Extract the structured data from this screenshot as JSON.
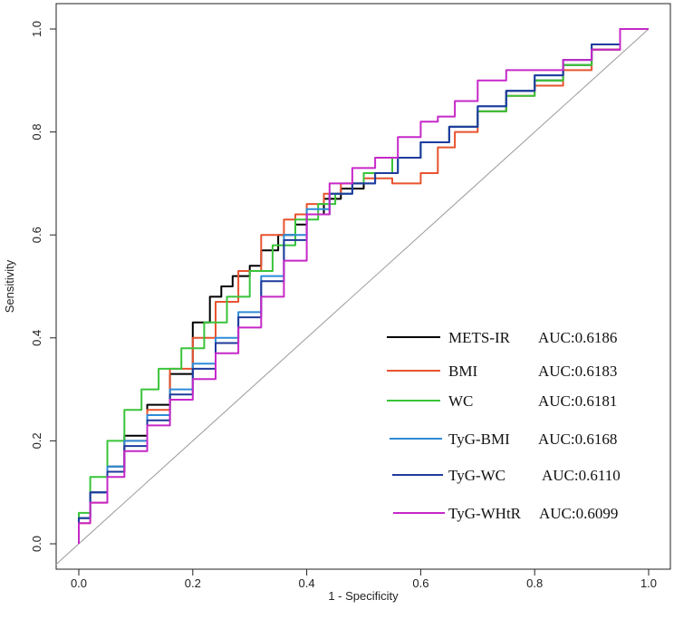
{
  "chart_data": {
    "type": "line",
    "title": "",
    "xlabel": "1 - Specificity",
    "ylabel": "Sensitivity",
    "xlim": [
      0.0,
      1.0
    ],
    "ylim": [
      0.0,
      1.0
    ],
    "xticks": [
      "0.0",
      "0.2",
      "0.4",
      "0.6",
      "0.8",
      "1.0"
    ],
    "yticks": [
      "0.0",
      "0.2",
      "0.4",
      "0.6",
      "0.8",
      "1.0"
    ],
    "tick_values": [
      0.0,
      0.2,
      0.4,
      0.6,
      0.8,
      1.0
    ],
    "reference_line": {
      "x": [
        0,
        1
      ],
      "y": [
        0,
        1
      ],
      "color": "#9a9a9a"
    },
    "legend_position": "bottom-right",
    "series": [
      {
        "name": "METS-IR",
        "auc_label": "AUC:0.6186",
        "color": "#000000",
        "x": [
          0,
          0.02,
          0.05,
          0.08,
          0.12,
          0.16,
          0.2,
          0.23,
          0.25,
          0.27,
          0.3,
          0.32,
          0.35,
          0.38,
          0.4,
          0.43,
          0.46,
          0.5,
          0.55,
          0.6,
          0.65,
          0.7,
          0.75,
          0.8,
          0.85,
          0.9,
          0.95,
          1.0
        ],
        "y": [
          0,
          0.05,
          0.1,
          0.15,
          0.21,
          0.27,
          0.33,
          0.43,
          0.48,
          0.5,
          0.52,
          0.54,
          0.57,
          0.6,
          0.62,
          0.64,
          0.67,
          0.69,
          0.72,
          0.75,
          0.78,
          0.81,
          0.84,
          0.88,
          0.9,
          0.93,
          0.96,
          1.0
        ]
      },
      {
        "name": "BMI",
        "auc_label": "AUC:0.6183",
        "color": "#e8532f",
        "x": [
          0,
          0.02,
          0.05,
          0.08,
          0.12,
          0.16,
          0.2,
          0.24,
          0.28,
          0.32,
          0.36,
          0.38,
          0.4,
          0.43,
          0.46,
          0.5,
          0.55,
          0.6,
          0.63,
          0.66,
          0.7,
          0.75,
          0.8,
          0.85,
          0.9,
          0.95,
          1.0
        ],
        "y": [
          0,
          0.04,
          0.08,
          0.14,
          0.2,
          0.26,
          0.34,
          0.4,
          0.47,
          0.53,
          0.6,
          0.63,
          0.64,
          0.66,
          0.68,
          0.7,
          0.71,
          0.7,
          0.72,
          0.77,
          0.8,
          0.84,
          0.87,
          0.89,
          0.92,
          0.96,
          1.0
        ]
      },
      {
        "name": "WC",
        "auc_label": "AUC:0.6181",
        "color": "#39c43a",
        "x": [
          0,
          0.02,
          0.05,
          0.08,
          0.11,
          0.14,
          0.18,
          0.22,
          0.26,
          0.3,
          0.34,
          0.38,
          0.42,
          0.45,
          0.48,
          0.5,
          0.55,
          0.6,
          0.65,
          0.7,
          0.75,
          0.8,
          0.85,
          0.9,
          0.95,
          1.0
        ],
        "y": [
          0,
          0.06,
          0.13,
          0.2,
          0.26,
          0.3,
          0.34,
          0.38,
          0.43,
          0.48,
          0.53,
          0.58,
          0.63,
          0.66,
          0.68,
          0.7,
          0.72,
          0.75,
          0.78,
          0.81,
          0.84,
          0.87,
          0.9,
          0.93,
          0.97,
          1.0
        ]
      },
      {
        "name": "TyG-BMI",
        "auc_label": "AUC:0.6168",
        "color": "#2e8bd8",
        "x": [
          0,
          0.02,
          0.05,
          0.08,
          0.12,
          0.16,
          0.2,
          0.24,
          0.28,
          0.32,
          0.36,
          0.4,
          0.44,
          0.48,
          0.52,
          0.56,
          0.6,
          0.65,
          0.7,
          0.75,
          0.8,
          0.85,
          0.9,
          0.95,
          1.0
        ],
        "y": [
          0,
          0.05,
          0.1,
          0.15,
          0.2,
          0.25,
          0.3,
          0.35,
          0.4,
          0.45,
          0.52,
          0.6,
          0.65,
          0.68,
          0.7,
          0.72,
          0.75,
          0.78,
          0.81,
          0.85,
          0.88,
          0.91,
          0.94,
          0.97,
          1.0
        ]
      },
      {
        "name": "TyG-WC",
        "auc_label": "AUC:0.6110",
        "color": "#1f3a9c",
        "x": [
          0,
          0.02,
          0.05,
          0.08,
          0.12,
          0.16,
          0.2,
          0.24,
          0.28,
          0.32,
          0.36,
          0.4,
          0.44,
          0.48,
          0.52,
          0.56,
          0.6,
          0.65,
          0.7,
          0.75,
          0.8,
          0.85,
          0.9,
          0.95,
          1.0
        ],
        "y": [
          0,
          0.05,
          0.1,
          0.14,
          0.19,
          0.24,
          0.29,
          0.34,
          0.39,
          0.44,
          0.51,
          0.59,
          0.64,
          0.68,
          0.7,
          0.72,
          0.75,
          0.78,
          0.81,
          0.85,
          0.88,
          0.91,
          0.94,
          0.97,
          1.0
        ]
      },
      {
        "name": "TyG-WHtR",
        "auc_label": "AUC:0.6099",
        "color": "#c628c8",
        "x": [
          0,
          0.02,
          0.05,
          0.08,
          0.12,
          0.16,
          0.2,
          0.24,
          0.28,
          0.32,
          0.36,
          0.4,
          0.44,
          0.48,
          0.52,
          0.56,
          0.6,
          0.63,
          0.66,
          0.7,
          0.75,
          0.8,
          0.85,
          0.9,
          0.95,
          1.0
        ],
        "y": [
          0,
          0.04,
          0.08,
          0.13,
          0.18,
          0.23,
          0.28,
          0.32,
          0.37,
          0.42,
          0.48,
          0.55,
          0.64,
          0.7,
          0.73,
          0.75,
          0.79,
          0.82,
          0.83,
          0.86,
          0.9,
          0.92,
          0.92,
          0.94,
          0.96,
          1.0
        ]
      }
    ]
  }
}
